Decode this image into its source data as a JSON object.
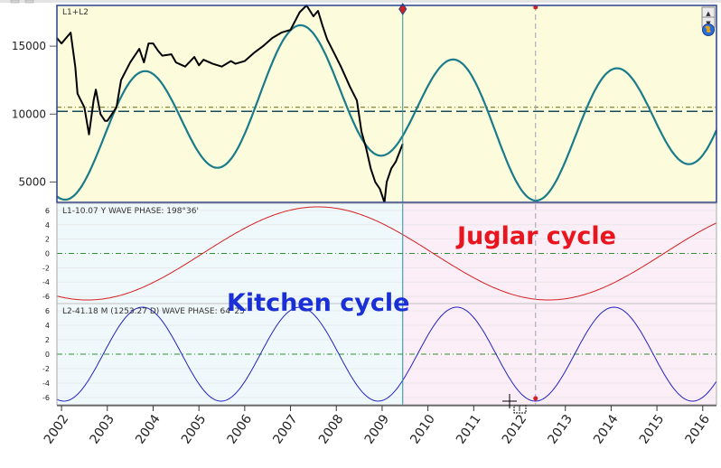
{
  "colors": {
    "background": "#ffffff",
    "panel1_bg": "#fcfcdc",
    "left_region_bg": "#eff8fb",
    "right_region_bg": "#fbeef6",
    "panel_border": "#2a3f8f",
    "price": "#000000",
    "l1_l2_wave": "#1a7b8b",
    "l1_wave": "#d61f1f",
    "l2_wave": "#2323c4",
    "zero_line": "#2f8f2f",
    "marker": "#d61f1f",
    "cursor_line": "#2a8fa0",
    "label_juglar": "#e8141e",
    "label_kitchen": "#1b2fd6"
  },
  "toolbar": {
    "arrow_up": "▲",
    "arrow_down": "▼",
    "globe_icon": "globe-icon"
  },
  "panels": {
    "p1": {
      "title": "L1+L2",
      "y_ticks": [
        "15000",
        "10000",
        "5000"
      ]
    },
    "p2": {
      "title": "L1-10.07 Y WAVE PHASE: 198°36'",
      "y_ticks": [
        "6",
        "4",
        "2",
        "0",
        "-2",
        "-4",
        "-6"
      ]
    },
    "p3": {
      "title": "L2-41.18 M (1253.27 D) WAVE PHASE: 64°25'",
      "y_ticks": [
        "6",
        "4",
        "2",
        "0",
        "-2",
        "-4",
        "-6"
      ]
    }
  },
  "annotations": {
    "juglar": "Juglar cycle",
    "kitchen": "Kitchen cycle"
  },
  "chart_data": [
    {
      "panel": "L1+L2",
      "type": "line",
      "ylim": [
        3500,
        18000
      ],
      "y_ticks": [
        5000,
        10000,
        15000
      ],
      "series": [
        {
          "name": "",
          "x": [
            2001.9,
            2002.0,
            2002.1,
            2002.2,
            2002.3,
            2002.35,
            2002.5,
            2002.6,
            2002.7,
            2002.75,
            2002.85,
            2002.95,
            2003.0,
            2003.2,
            2003.3,
            2003.5,
            2003.7,
            2003.8,
            2003.9,
            2004.0,
            2004.1,
            2004.2,
            2004.4,
            2004.5,
            2004.7,
            2004.9,
            2005.0,
            2005.1,
            2005.3,
            2005.5,
            2005.7,
            2005.8,
            2006.0,
            2006.2,
            2006.4,
            2006.6,
            2006.8,
            2007.0,
            2007.2,
            2007.35,
            2007.5,
            2007.6,
            2007.7,
            2007.8,
            2007.95,
            2008.1,
            2008.3,
            2008.45,
            2008.55,
            2008.65,
            2008.75,
            2008.85,
            2008.95,
            2009.05,
            2009.1,
            2009.2,
            2009.3,
            2009.45
          ],
          "y": [
            15600,
            15200,
            15600,
            16000,
            13500,
            11500,
            10500,
            8500,
            11000,
            11800,
            10000,
            9500,
            9500,
            10500,
            12500,
            13800,
            14800,
            13800,
            15200,
            15200,
            14700,
            14300,
            14400,
            13800,
            13500,
            14200,
            13600,
            14000,
            13700,
            13500,
            13900,
            13700,
            13900,
            14500,
            15000,
            15600,
            16000,
            16200,
            17500,
            18000,
            17200,
            17600,
            16500,
            15500,
            14500,
            13500,
            12000,
            11000,
            8700,
            7500,
            6000,
            5000,
            4500,
            3500,
            5000,
            6000,
            6500,
            7800
          ]
        },
        {
          "name": "",
          "function": "10100 + 2000*cos(2π(x-2007.6)/10.07) + 4500*cos(2π(x-2010.63)/3.431)",
          "x": [
            2001.9,
            2016.3
          ]
        }
      ],
      "reference_lines": [
        10200,
        10500
      ]
    },
    {
      "panel": "L1-10.07 Y",
      "type": "line",
      "ylim": [
        -7,
        7
      ],
      "y_ticks": [
        -6,
        -4,
        -2,
        0,
        2,
        4,
        6
      ],
      "series": [
        {
          "name": "",
          "function": "6.5*cos(2π(x-2007.6)/10.07)",
          "x": [
            2001.9,
            2016.3
          ]
        }
      ]
    },
    {
      "panel": "L2-41.18 M (1253.27 D)",
      "type": "line",
      "ylim": [
        -7,
        7
      ],
      "y_ticks": [
        -6,
        -4,
        -2,
        0,
        2,
        4,
        6
      ],
      "series": [
        {
          "name": "",
          "function": "6.5*cos(2π(x-2010.63)/3.431)",
          "x": [
            2001.9,
            2016.3
          ]
        }
      ]
    }
  ],
  "x_axis": {
    "labels": [
      "2002",
      "2003",
      "2004",
      "2005",
      "2006",
      "2007",
      "2008",
      "2009",
      "2010",
      "2011",
      "2012",
      "2013",
      "2014",
      "2015",
      "2016"
    ],
    "range": [
      2001.9,
      2016.3
    ]
  },
  "cursor_date": 2009.45,
  "marker_date": 2012.35
}
